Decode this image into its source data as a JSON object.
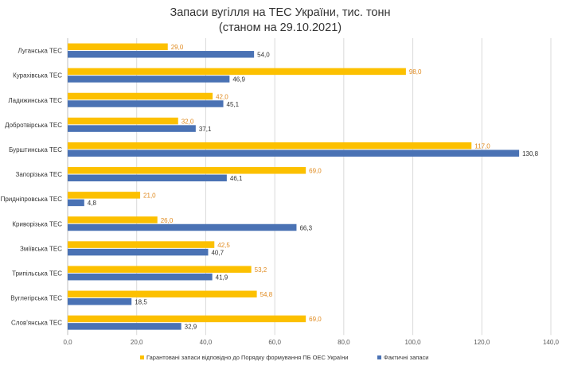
{
  "chart_data": {
    "type": "bar",
    "orientation": "horizontal",
    "title": "Запаси вугілля на ТЕС України, тис. тонн",
    "subtitle": "(станом на 29.10.2021)",
    "categories": [
      "Луганська ТЕС",
      "Курахівська ТЕС",
      "Ладижинська ТЕС",
      "Добротвірська ТЕС",
      "Бурштинська ТЕС",
      "Запорізька ТЕС",
      "Придніпровська ТЕС",
      "Криворізька ТЕС",
      "Зміївська ТЕС",
      "Трипільська ТЕС",
      "Вуглегірська ТЕС",
      "Слов'янська ТЕС"
    ],
    "series": [
      {
        "name": "Гарантовані запаси відповідно до Порядку формування ПБ ОЕС України",
        "color": "#fcc000",
        "labels": [
          "29,0",
          "98,0",
          "42,0",
          "32,0",
          "117,0",
          "69,0",
          "21,0",
          "26,0",
          "42,5",
          "53,2",
          "54,8",
          "69,0"
        ],
        "values": [
          29.0,
          98.0,
          42.0,
          32.0,
          117.0,
          69.0,
          21.0,
          26.0,
          42.5,
          53.2,
          54.8,
          69.0
        ]
      },
      {
        "name": "Фактичні запаси",
        "color": "#4a72b4",
        "labels": [
          "54,0",
          "46,9",
          "45,1",
          "37,1",
          "130,8",
          "46,1",
          "4,8",
          "66,3",
          "40,7",
          "41,9",
          "18,5",
          "32,9"
        ],
        "values": [
          54.0,
          46.9,
          45.1,
          37.1,
          130.8,
          46.1,
          4.8,
          66.3,
          40.7,
          41.9,
          18.5,
          32.9
        ]
      }
    ],
    "xlim": [
      0,
      140
    ],
    "xticks": [
      0,
      20,
      40,
      60,
      80,
      100,
      120,
      140
    ],
    "xtick_labels": [
      "0,0",
      "20,0",
      "40,0",
      "60,0",
      "80,0",
      "100,0",
      "120,0",
      "140,0"
    ],
    "grid": true,
    "legend_position": "bottom"
  }
}
